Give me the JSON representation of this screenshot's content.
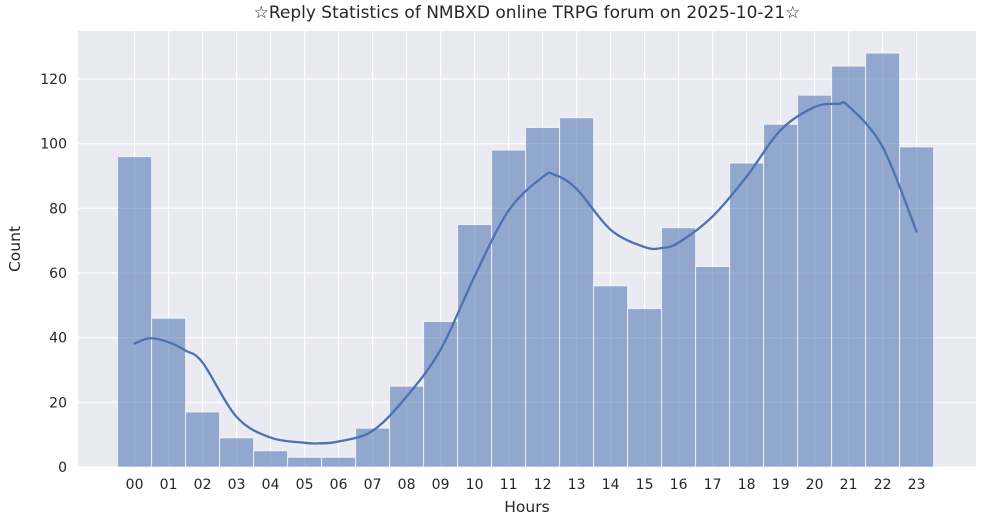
{
  "chart_data": {
    "type": "bar",
    "subtype": "histogram-with-kde",
    "title": "☆Reply Statistics of NMBXD online TRPG forum on 2025-10-21☆",
    "xlabel": "Hours",
    "ylabel": "Count",
    "categories": [
      "00",
      "01",
      "02",
      "03",
      "04",
      "05",
      "06",
      "07",
      "08",
      "09",
      "10",
      "11",
      "12",
      "13",
      "14",
      "15",
      "16",
      "17",
      "18",
      "19",
      "20",
      "21",
      "22",
      "23"
    ],
    "values": [
      96,
      46,
      17,
      9,
      5,
      3,
      3,
      12,
      25,
      45,
      75,
      98,
      105,
      108,
      56,
      49,
      74,
      62,
      94,
      106,
      115,
      124,
      128,
      99
    ],
    "yticks": [
      0,
      20,
      40,
      60,
      80,
      100,
      120
    ],
    "ylim": [
      0,
      135
    ],
    "grid": true,
    "legend": false,
    "kde_curve": [
      [
        0,
        38.2
      ],
      [
        0.45,
        39.8
      ],
      [
        1,
        38.6
      ],
      [
        1.5,
        36.0
      ],
      [
        2,
        32.3
      ],
      [
        3,
        15.5
      ],
      [
        4,
        9.1
      ],
      [
        5,
        7.5
      ],
      [
        5.4,
        7.3
      ],
      [
        6,
        7.9
      ],
      [
        7,
        11.2
      ],
      [
        8,
        21.8
      ],
      [
        9,
        36.3
      ],
      [
        10,
        59.0
      ],
      [
        11,
        79.3
      ],
      [
        12,
        89.7
      ],
      [
        12.35,
        90.4
      ],
      [
        13,
        86.0
      ],
      [
        14,
        73.4
      ],
      [
        15,
        68.0
      ],
      [
        15.5,
        67.7
      ],
      [
        16,
        69.4
      ],
      [
        17,
        77.5
      ],
      [
        18,
        89.8
      ],
      [
        19,
        104.2
      ],
      [
        20,
        111.3
      ],
      [
        20.7,
        112.3
      ],
      [
        21,
        111.6
      ],
      [
        22,
        99.0
      ],
      [
        23,
        72.8
      ]
    ],
    "colors": {
      "figure_bg": "#ffffff",
      "plot_bg": "#eaeaf2",
      "grid": "#ffffff",
      "bar_fill": "rgba(76,114,176,0.56)",
      "bar_edge": "rgba(255,255,255,0.7)",
      "line": "#4c72b0",
      "text": "#262626"
    }
  }
}
